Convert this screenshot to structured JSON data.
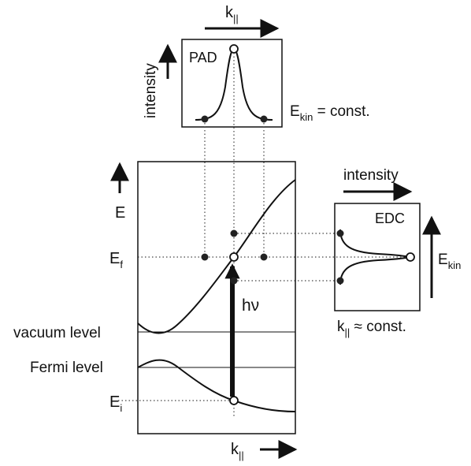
{
  "diagram": {
    "pad": {
      "title": "PAD",
      "axis_label": "intensity",
      "k_label_main": "k",
      "k_label_sub": "||",
      "energy_label_main": "E",
      "energy_label_sub": "kin",
      "energy_label_rest": " = const."
    },
    "main": {
      "e_axis_label": "E",
      "ef_main": "E",
      "ef_sub": "f",
      "ei_main": "E",
      "ei_sub": "i",
      "vacuum_label": "vacuum level",
      "fermi_label": "Fermi level",
      "photon_label": "hν",
      "k_label_main": "k",
      "k_label_sub": "||"
    },
    "edc": {
      "title": "EDC",
      "intensity_label": "intensity",
      "ekin_main": "E",
      "ekin_sub": "kin",
      "k_main": "k",
      "k_sub": "||",
      "k_rest": " ≈ const."
    }
  }
}
